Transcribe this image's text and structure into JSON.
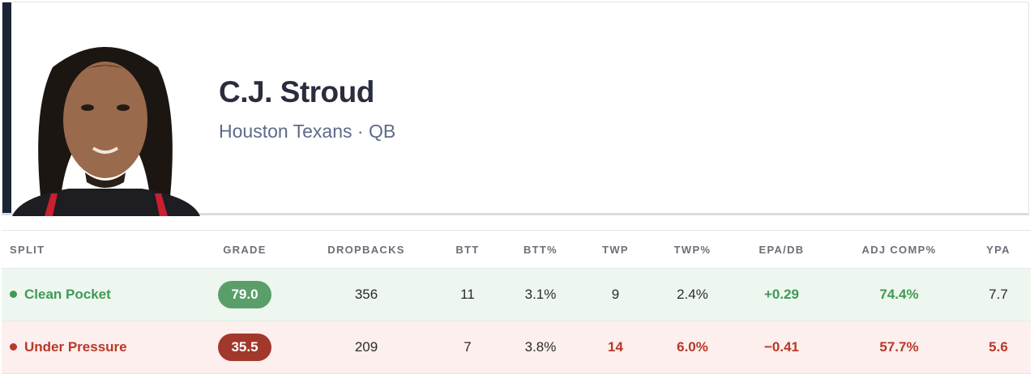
{
  "header": {
    "name": "C.J. Stroud",
    "subtitle": "Houston Texans · QB"
  },
  "table": {
    "columns": [
      "SPLIT",
      "GRADE",
      "DROPBACKS",
      "BTT",
      "BTT%",
      "TWP",
      "TWP%",
      "EPA/DB",
      "ADJ COMP%",
      "YPA"
    ],
    "rows": [
      [
        "Clean Pocket",
        "79.0",
        "356",
        "11",
        "3.1%",
        "9",
        "2.4%",
        "+0.29",
        "74.4%",
        "7.7"
      ],
      [
        "Under Pressure",
        "35.5",
        "209",
        "7",
        "3.8%",
        "14",
        "6.0%",
        "−0.41",
        "57.7%",
        "5.6"
      ]
    ]
  }
}
